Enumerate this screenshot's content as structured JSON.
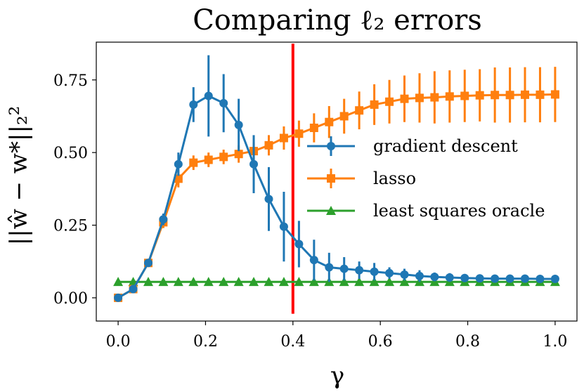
{
  "chart_data": {
    "type": "line",
    "title": "Comparing ℓ₂ errors",
    "xlabel": "γ",
    "ylabel": "||ŵ − w*||₂²",
    "xlim": [
      -0.05,
      1.05
    ],
    "ylim": [
      -0.08,
      0.88
    ],
    "xticks": [
      0.0,
      0.2,
      0.4,
      0.6,
      0.8,
      1.0
    ],
    "xtick_labels": [
      "0.0",
      "0.2",
      "0.4",
      "0.6",
      "0.8",
      "1.0"
    ],
    "yticks": [
      0.0,
      0.25,
      0.5,
      0.75
    ],
    "ytick_labels": [
      "0.00",
      "0.25",
      "0.50",
      "0.75"
    ],
    "grid": false,
    "legend_position": "right",
    "vline": {
      "x": 0.4,
      "color": "#ff0000"
    },
    "x": [
      0.0,
      0.0345,
      0.069,
      0.1034,
      0.1379,
      0.1724,
      0.2069,
      0.2414,
      0.2759,
      0.3103,
      0.3448,
      0.3793,
      0.4138,
      0.4483,
      0.4828,
      0.5172,
      0.5517,
      0.5862,
      0.6207,
      0.6552,
      0.6897,
      0.7241,
      0.7586,
      0.7931,
      0.8276,
      0.8621,
      0.8966,
      0.931,
      0.9655,
      1.0
    ],
    "series": [
      {
        "name": "gradient descent",
        "color": "#1f77b4",
        "marker": "circle",
        "values": [
          0.0,
          0.03,
          0.12,
          0.27,
          0.46,
          0.665,
          0.695,
          0.67,
          0.595,
          0.46,
          0.34,
          0.245,
          0.185,
          0.13,
          0.105,
          0.1,
          0.095,
          0.09,
          0.085,
          0.08,
          0.075,
          0.072,
          0.07,
          0.068,
          0.067,
          0.066,
          0.066,
          0.066,
          0.065,
          0.065
        ],
        "errors": [
          0.0,
          0.005,
          0.01,
          0.02,
          0.04,
          0.06,
          0.14,
          0.1,
          0.09,
          0.1,
          0.11,
          0.12,
          0.08,
          0.07,
          0.05,
          0.04,
          0.03,
          0.03,
          0.02,
          0.02,
          0.02,
          0.015,
          0.015,
          0.01,
          0.01,
          0.01,
          0.01,
          0.01,
          0.01,
          0.01
        ]
      },
      {
        "name": "lasso",
        "color": "#ff7f0e",
        "marker": "square",
        "values": [
          0.0,
          0.03,
          0.12,
          0.26,
          0.41,
          0.465,
          0.475,
          0.485,
          0.495,
          0.505,
          0.525,
          0.55,
          0.565,
          0.585,
          0.605,
          0.625,
          0.645,
          0.665,
          0.675,
          0.685,
          0.688,
          0.69,
          0.693,
          0.695,
          0.697,
          0.698,
          0.698,
          0.699,
          0.699,
          0.7
        ],
        "errors": [
          0.0,
          0.005,
          0.01,
          0.02,
          0.03,
          0.025,
          0.025,
          0.025,
          0.03,
          0.03,
          0.035,
          0.04,
          0.045,
          0.05,
          0.055,
          0.06,
          0.065,
          0.07,
          0.075,
          0.08,
          0.085,
          0.09,
          0.09,
          0.09,
          0.09,
          0.095,
          0.095,
          0.095,
          0.095,
          0.095
        ]
      },
      {
        "name": "least squares oracle",
        "color": "#2ca02c",
        "marker": "triangle",
        "values": [
          0.055,
          0.055,
          0.055,
          0.055,
          0.055,
          0.055,
          0.055,
          0.055,
          0.055,
          0.055,
          0.055,
          0.055,
          0.055,
          0.055,
          0.055,
          0.055,
          0.055,
          0.055,
          0.055,
          0.055,
          0.055,
          0.055,
          0.055,
          0.055,
          0.055,
          0.055,
          0.055,
          0.055,
          0.055,
          0.055
        ]
      }
    ]
  }
}
